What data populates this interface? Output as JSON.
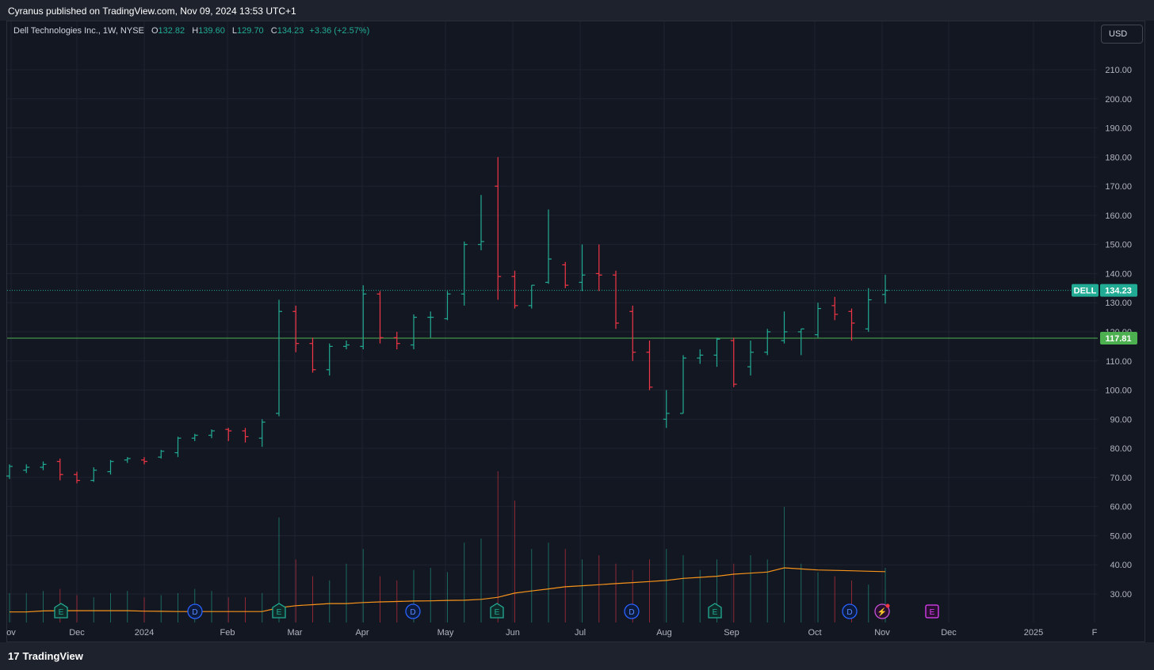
{
  "header": {
    "published_text": "Cyranus published on TradingView.com, Nov 09, 2024 13:53 UTC+1"
  },
  "legend": {
    "title": "Dell Technologies Inc., 1W, NYSE",
    "open_label": "O",
    "open": "132.82",
    "high_label": "H",
    "high": "139.60",
    "low_label": "L",
    "low": "129.70",
    "close_label": "C",
    "close": "134.23",
    "change": "+3.36 (+2.57%)"
  },
  "currency_button": "USD",
  "footer": {
    "brand": "TradingView",
    "logo_glyph": "17"
  },
  "colors": {
    "up": "#22ab94",
    "down": "#f23645",
    "background": "#131722",
    "grid": "#1f2330",
    "ma": "#f7931a",
    "level": "#4caf50",
    "text": "#b2b5be"
  },
  "chart_data": {
    "type": "ohlc",
    "title": "Dell Technologies Inc., 1W, NYSE",
    "ylim": [
      20,
      220
    ],
    "y_ticks": [
      "30.00",
      "40.00",
      "50.00",
      "60.00",
      "70.00",
      "80.00",
      "90.00",
      "100.00",
      "110.00",
      "120.00",
      "130.00",
      "140.00",
      "150.00",
      "160.00",
      "170.00",
      "180.00",
      "190.00",
      "200.00",
      "210.00"
    ],
    "x_ticks": [
      "ov",
      "Dec",
      "2024",
      "Feb",
      "Mar",
      "Apr",
      "May",
      "Jun",
      "Jul",
      "Aug",
      "Sep",
      "Oct",
      "Nov",
      "Dec",
      "2025",
      "F"
    ],
    "price_label": {
      "symbol": "DELL",
      "value": "134.23"
    },
    "level_label": "117.81",
    "level_value": 117.81,
    "last_price": 134.23,
    "bars": [
      {
        "o": 70.5,
        "h": 74.5,
        "l": 69.5,
        "c": 73.8
      },
      {
        "o": 72.5,
        "h": 74.5,
        "l": 71.5,
        "c": 73.5
      },
      {
        "o": 73.5,
        "h": 75.5,
        "l": 72.5,
        "c": 74.5
      },
      {
        "o": 75.5,
        "h": 76.5,
        "l": 69.0,
        "c": 71.0
      },
      {
        "o": 71.0,
        "h": 72.0,
        "l": 68.0,
        "c": 69.0
      },
      {
        "o": 69.0,
        "h": 73.5,
        "l": 68.5,
        "c": 72.5
      },
      {
        "o": 72.0,
        "h": 76.0,
        "l": 71.0,
        "c": 75.5
      },
      {
        "o": 76.0,
        "h": 77.0,
        "l": 75.0,
        "c": 76.5
      },
      {
        "o": 76.0,
        "h": 77.0,
        "l": 74.5,
        "c": 75.5
      },
      {
        "o": 77.0,
        "h": 79.5,
        "l": 76.5,
        "c": 79.0
      },
      {
        "o": 78.5,
        "h": 84.0,
        "l": 77.0,
        "c": 83.5
      },
      {
        "o": 83.5,
        "h": 85.0,
        "l": 82.5,
        "c": 84.5
      },
      {
        "o": 84.5,
        "h": 86.5,
        "l": 83.5,
        "c": 86.0
      },
      {
        "o": 86.5,
        "h": 87.0,
        "l": 82.5,
        "c": 86.0
      },
      {
        "o": 86.0,
        "h": 87.0,
        "l": 82.0,
        "c": 84.0
      },
      {
        "o": 83.5,
        "h": 90.0,
        "l": 80.5,
        "c": 89.0
      },
      {
        "o": 92.0,
        "h": 131.0,
        "l": 91.0,
        "c": 127.0
      },
      {
        "o": 127.0,
        "h": 129.0,
        "l": 113.0,
        "c": 116.0
      },
      {
        "o": 116.0,
        "h": 118.0,
        "l": 106.0,
        "c": 107.0
      },
      {
        "o": 107.0,
        "h": 116.0,
        "l": 105.0,
        "c": 115.0
      },
      {
        "o": 115.0,
        "h": 117.0,
        "l": 114.0,
        "c": 115.5
      },
      {
        "o": 115.0,
        "h": 136.0,
        "l": 114.0,
        "c": 133.0
      },
      {
        "o": 133.0,
        "h": 134.0,
        "l": 116.0,
        "c": 118.0
      },
      {
        "o": 118.0,
        "h": 120.0,
        "l": 114.0,
        "c": 116.0
      },
      {
        "o": 115.5,
        "h": 126.0,
        "l": 114.0,
        "c": 125.0
      },
      {
        "o": 125.0,
        "h": 127.0,
        "l": 118.0,
        "c": 125.0
      },
      {
        "o": 124.5,
        "h": 134.0,
        "l": 124.0,
        "c": 133.0
      },
      {
        "o": 133.0,
        "h": 151.0,
        "l": 129.0,
        "c": 150.0
      },
      {
        "o": 150.0,
        "h": 167.0,
        "l": 148.0,
        "c": 151.0
      },
      {
        "o": 170.0,
        "h": 180.0,
        "l": 131.0,
        "c": 139.0
      },
      {
        "o": 139.0,
        "h": 141.0,
        "l": 128.0,
        "c": 129.0
      },
      {
        "o": 129.0,
        "h": 136.0,
        "l": 128.0,
        "c": 136.0
      },
      {
        "o": 137.0,
        "h": 162.0,
        "l": 136.5,
        "c": 145.0
      },
      {
        "o": 143.0,
        "h": 144.0,
        "l": 135.0,
        "c": 136.0
      },
      {
        "o": 137.0,
        "h": 150.0,
        "l": 134.0,
        "c": 139.5
      },
      {
        "o": 140.0,
        "h": 150.0,
        "l": 134.0,
        "c": 139.5
      },
      {
        "o": 139.5,
        "h": 141.0,
        "l": 121.0,
        "c": 123.0
      },
      {
        "o": 127.0,
        "h": 129.0,
        "l": 110.0,
        "c": 113.0
      },
      {
        "o": 113.0,
        "h": 117.0,
        "l": 100.0,
        "c": 101.0
      },
      {
        "o": 90.0,
        "h": 100.0,
        "l": 87.0,
        "c": 92.0
      },
      {
        "o": 92.0,
        "h": 112.0,
        "l": 92.0,
        "c": 111.0
      },
      {
        "o": 111.0,
        "h": 114.0,
        "l": 109.0,
        "c": 112.0
      },
      {
        "o": 112.0,
        "h": 118.0,
        "l": 108.0,
        "c": 117.5
      },
      {
        "o": 117.0,
        "h": 118.0,
        "l": 101.0,
        "c": 102.0
      },
      {
        "o": 108.0,
        "h": 117.0,
        "l": 105.0,
        "c": 113.0
      },
      {
        "o": 113.0,
        "h": 121.0,
        "l": 112.0,
        "c": 120.0
      },
      {
        "o": 117.0,
        "h": 127.0,
        "l": 116.0,
        "c": 120.0
      },
      {
        "o": 120.0,
        "h": 121.0,
        "l": 112.0,
        "c": 121.0
      },
      {
        "o": 119.0,
        "h": 130.0,
        "l": 118.0,
        "c": 128.0
      },
      {
        "o": 129.0,
        "h": 132.0,
        "l": 124.0,
        "c": 126.0
      },
      {
        "o": 127.0,
        "h": 128.0,
        "l": 117.0,
        "c": 123.0
      },
      {
        "o": 121.0,
        "h": 135.0,
        "l": 120.0,
        "c": 131.0
      },
      {
        "o": 132.82,
        "h": 139.6,
        "l": 129.7,
        "c": 134.23
      }
    ],
    "volume_scale": [
      0,
      72
    ],
    "volume": [
      14,
      14,
      15,
      16,
      13,
      12,
      14,
      15,
      12,
      13,
      14,
      16,
      15,
      12,
      12,
      14,
      50,
      30,
      22,
      20,
      28,
      35,
      22,
      20,
      25,
      26,
      24,
      38,
      40,
      72,
      58,
      35,
      38,
      35,
      30,
      32,
      28,
      25,
      30,
      35,
      32,
      25,
      30,
      28,
      32,
      30,
      55,
      28,
      24,
      22,
      20,
      18,
      26
    ],
    "ma_volume": [
      5,
      5,
      5.5,
      5.6,
      5.6,
      5.6,
      5.6,
      5.6,
      5.4,
      5.3,
      5.2,
      5.2,
      5.2,
      5.2,
      5.2,
      5.2,
      7,
      8,
      8.5,
      9,
      9,
      9.5,
      9.8,
      10,
      10.2,
      10.3,
      10.5,
      10.6,
      11,
      12,
      14,
      15,
      16,
      17,
      17.5,
      18,
      18.5,
      19,
      19.5,
      20,
      21,
      21.5,
      22,
      23,
      23.5,
      24,
      26,
      25.5,
      25,
      24.8,
      24.6,
      24.4,
      24.2
    ],
    "events": [
      {
        "bar": 4,
        "label": "E",
        "kind": "earnings"
      },
      {
        "bar": 16,
        "label": "E",
        "kind": "earnings"
      },
      {
        "bar": 11,
        "label": "D",
        "kind": "dividend"
      },
      {
        "bar": 24,
        "label": "D",
        "kind": "dividend"
      },
      {
        "bar": 29,
        "label": "E",
        "kind": "earnings"
      },
      {
        "bar": 37,
        "label": "D",
        "kind": "dividend"
      },
      {
        "bar": 42,
        "label": "E",
        "kind": "earnings"
      },
      {
        "bar": 50,
        "label": "D",
        "kind": "dividend"
      },
      {
        "bar": 52,
        "label": "⚡",
        "kind": "split"
      },
      {
        "bar": 55,
        "label": "E",
        "kind": "future-earnings"
      }
    ]
  }
}
